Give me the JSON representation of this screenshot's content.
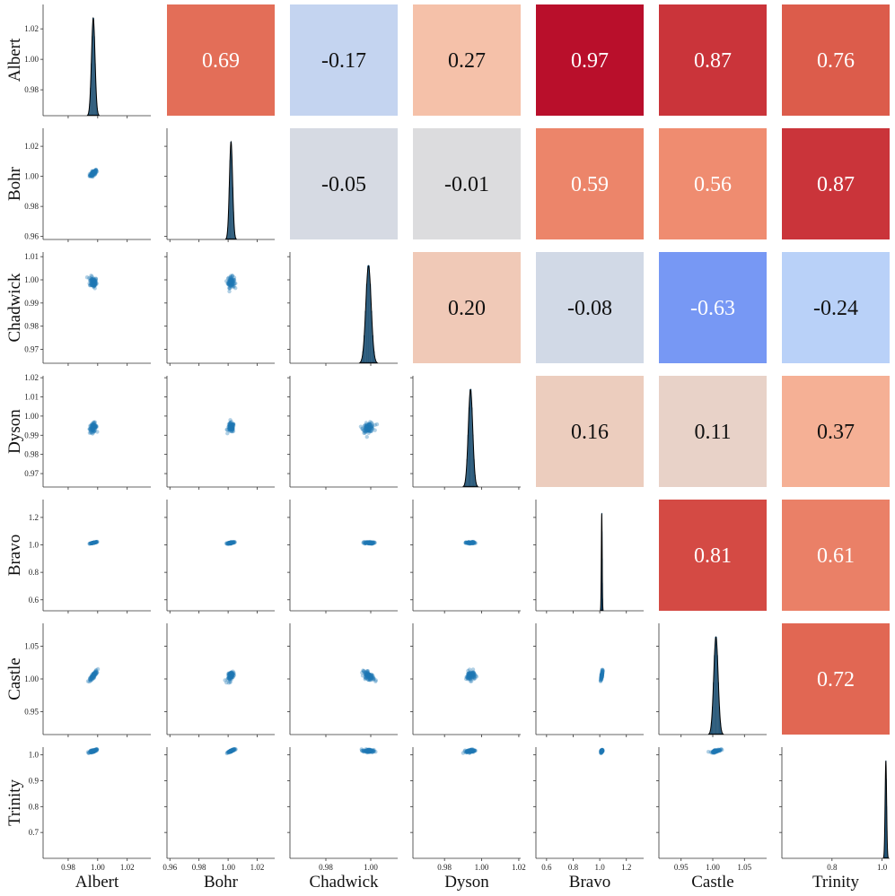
{
  "chart_data": {
    "type": "pairplot",
    "variables": [
      "Albert",
      "Bohr",
      "Chadwick",
      "Dyson",
      "Bravo",
      "Castle",
      "Trinity"
    ],
    "correlations": [
      [
        1.0,
        0.69,
        -0.17,
        0.27,
        0.97,
        0.87,
        0.76
      ],
      [
        0.69,
        1.0,
        -0.05,
        -0.01,
        0.59,
        0.56,
        0.87
      ],
      [
        -0.17,
        -0.05,
        1.0,
        0.2,
        -0.08,
        -0.63,
        -0.24
      ],
      [
        0.27,
        -0.01,
        0.2,
        1.0,
        0.16,
        0.11,
        0.37
      ],
      [
        0.97,
        0.59,
        -0.08,
        0.16,
        1.0,
        0.81,
        0.61
      ],
      [
        0.87,
        0.56,
        -0.63,
        0.11,
        0.81,
        1.0,
        0.72
      ],
      [
        0.76,
        0.87,
        -0.24,
        0.37,
        0.61,
        0.72,
        1.0
      ]
    ],
    "correlation_labels": [
      [
        "",
        "0.69",
        "-0.17",
        "0.27",
        "0.97",
        "0.87",
        "0.76"
      ],
      [
        "",
        "",
        "-0.05",
        "-0.01",
        "0.59",
        "0.56",
        "0.87"
      ],
      [
        "",
        "",
        "",
        "0.20",
        "-0.08",
        "-0.63",
        "-0.24"
      ],
      [
        "",
        "",
        "",
        "",
        "0.16",
        "0.11",
        "0.37"
      ],
      [
        "",
        "",
        "",
        "",
        "",
        "0.81",
        "0.61"
      ],
      [
        "",
        "",
        "",
        "",
        "",
        "",
        "0.72"
      ],
      [
        "",
        "",
        "",
        "",
        "",
        "",
        ""
      ]
    ],
    "means": [
      0.997,
      1.002,
      0.999,
      0.994,
      1.015,
      1.005,
      1.015
    ],
    "spreads": [
      0.0012,
      0.0011,
      0.0012,
      0.0012,
      0.0032,
      0.0035,
      0.003
    ],
    "axis_ranges": [
      [
        0.963,
        1.036
      ],
      [
        0.958,
        1.032
      ],
      [
        0.964,
        1.012
      ],
      [
        0.963,
        1.021
      ],
      [
        0.52,
        1.33
      ],
      [
        0.915,
        1.085
      ],
      [
        0.6,
        1.03
      ]
    ],
    "row_ticks": [
      [
        "0.98",
        "1.00",
        "1.02"
      ],
      [
        "0.96",
        "0.98",
        "1.00",
        "1.02"
      ],
      [
        "0.97",
        "0.98",
        "0.99",
        "1.00",
        "1.01"
      ],
      [
        "0.97",
        "0.98",
        "0.99",
        "1.00",
        "1.01",
        "1.02"
      ],
      [
        "0.6",
        "0.8",
        "1.0",
        "1.2"
      ],
      [
        "0.95",
        "1.00",
        "1.05"
      ],
      [
        "0.7",
        "0.8",
        "0.9",
        "1.0"
      ]
    ],
    "col_ticks": [
      [
        "0.98",
        "1.00",
        "1.02"
      ],
      [
        "0.96",
        "0.98",
        "1.00",
        "1.02"
      ],
      [
        "0.98",
        "1.00"
      ],
      [
        "0.98",
        "1.00",
        "1.02"
      ],
      [
        "0.6",
        "0.8",
        "1.0",
        "1.2"
      ],
      [
        "0.95",
        "1.00",
        "1.05"
      ],
      [
        "0.8",
        "1.0"
      ]
    ],
    "colormap": "coolwarm",
    "color_range": [
      -1,
      1
    ],
    "scatter_color": "#1f77b4",
    "hist_color": "#1f77b4",
    "kde_color": "#000000"
  }
}
